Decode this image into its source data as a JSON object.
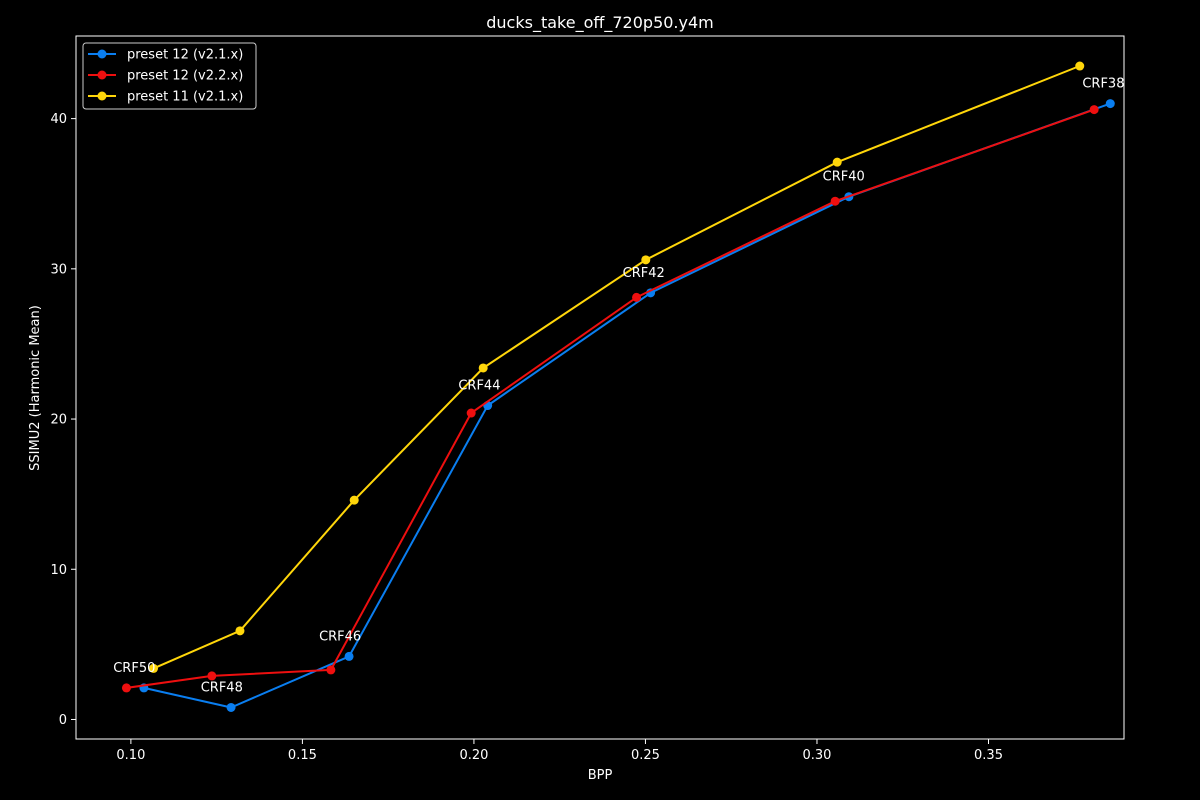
{
  "chart_data": {
    "type": "line",
    "title": "ducks_take_off_720p50.y4m",
    "xlabel": "BPP",
    "ylabel": "SSIMU2 (Harmonic Mean)",
    "xlim": [
      0.084,
      0.3895
    ],
    "ylim": [
      -1.3,
      45.5
    ],
    "xticks": [
      0.1,
      0.15,
      0.2,
      0.25,
      0.3,
      0.35
    ],
    "xtick_labels": [
      "0.10",
      "0.15",
      "0.20",
      "0.25",
      "0.30",
      "0.35"
    ],
    "yticks": [
      0,
      10,
      20,
      30,
      40
    ],
    "ytick_labels": [
      "0",
      "10",
      "20",
      "30",
      "40"
    ],
    "grid": false,
    "legend_position": "top-left",
    "series": [
      {
        "name": "preset 12 (v2.1.x)",
        "color": "#0a7ef0",
        "points": [
          {
            "x": 0.1038,
            "y": 2.1
          },
          {
            "x": 0.1292,
            "y": 0.8
          },
          {
            "x": 0.1636,
            "y": 4.2
          },
          {
            "x": 0.204,
            "y": 20.9
          },
          {
            "x": 0.2515,
            "y": 28.4
          },
          {
            "x": 0.3093,
            "y": 34.8
          },
          {
            "x": 0.3855,
            "y": 41.0
          }
        ]
      },
      {
        "name": "preset 12 (v2.2.x)",
        "color": "#ee0f0f",
        "points": [
          {
            "x": 0.0987,
            "y": 2.1
          },
          {
            "x": 0.1236,
            "y": 2.9
          },
          {
            "x": 0.1583,
            "y": 3.3
          },
          {
            "x": 0.1992,
            "y": 20.4
          },
          {
            "x": 0.2474,
            "y": 28.1
          },
          {
            "x": 0.3053,
            "y": 34.5
          },
          {
            "x": 0.3808,
            "y": 40.6
          }
        ]
      },
      {
        "name": "preset 11 (v2.1.x)",
        "color": "#ffd60a",
        "points": [
          {
            "x": 0.1066,
            "y": 3.4
          },
          {
            "x": 0.1318,
            "y": 5.9
          },
          {
            "x": 0.1651,
            "y": 14.6
          },
          {
            "x": 0.2027,
            "y": 23.4
          },
          {
            "x": 0.2501,
            "y": 30.6
          },
          {
            "x": 0.3059,
            "y": 37.1
          },
          {
            "x": 0.3766,
            "y": 43.5
          }
        ]
      }
    ],
    "annotations": [
      {
        "text": "CRF50",
        "x": 0.101,
        "y": 2.3
      },
      {
        "text": "CRF48",
        "x": 0.1265,
        "y": 1.0
      },
      {
        "text": "CRF46",
        "x": 0.161,
        "y": 4.4
      },
      {
        "text": "CRF44",
        "x": 0.2016,
        "y": 21.1
      },
      {
        "text": "CRF42",
        "x": 0.2495,
        "y": 28.6
      },
      {
        "text": "CRF40",
        "x": 0.3078,
        "y": 35.0
      },
      {
        "text": "CRF38",
        "x": 0.3835,
        "y": 41.2
      }
    ]
  }
}
